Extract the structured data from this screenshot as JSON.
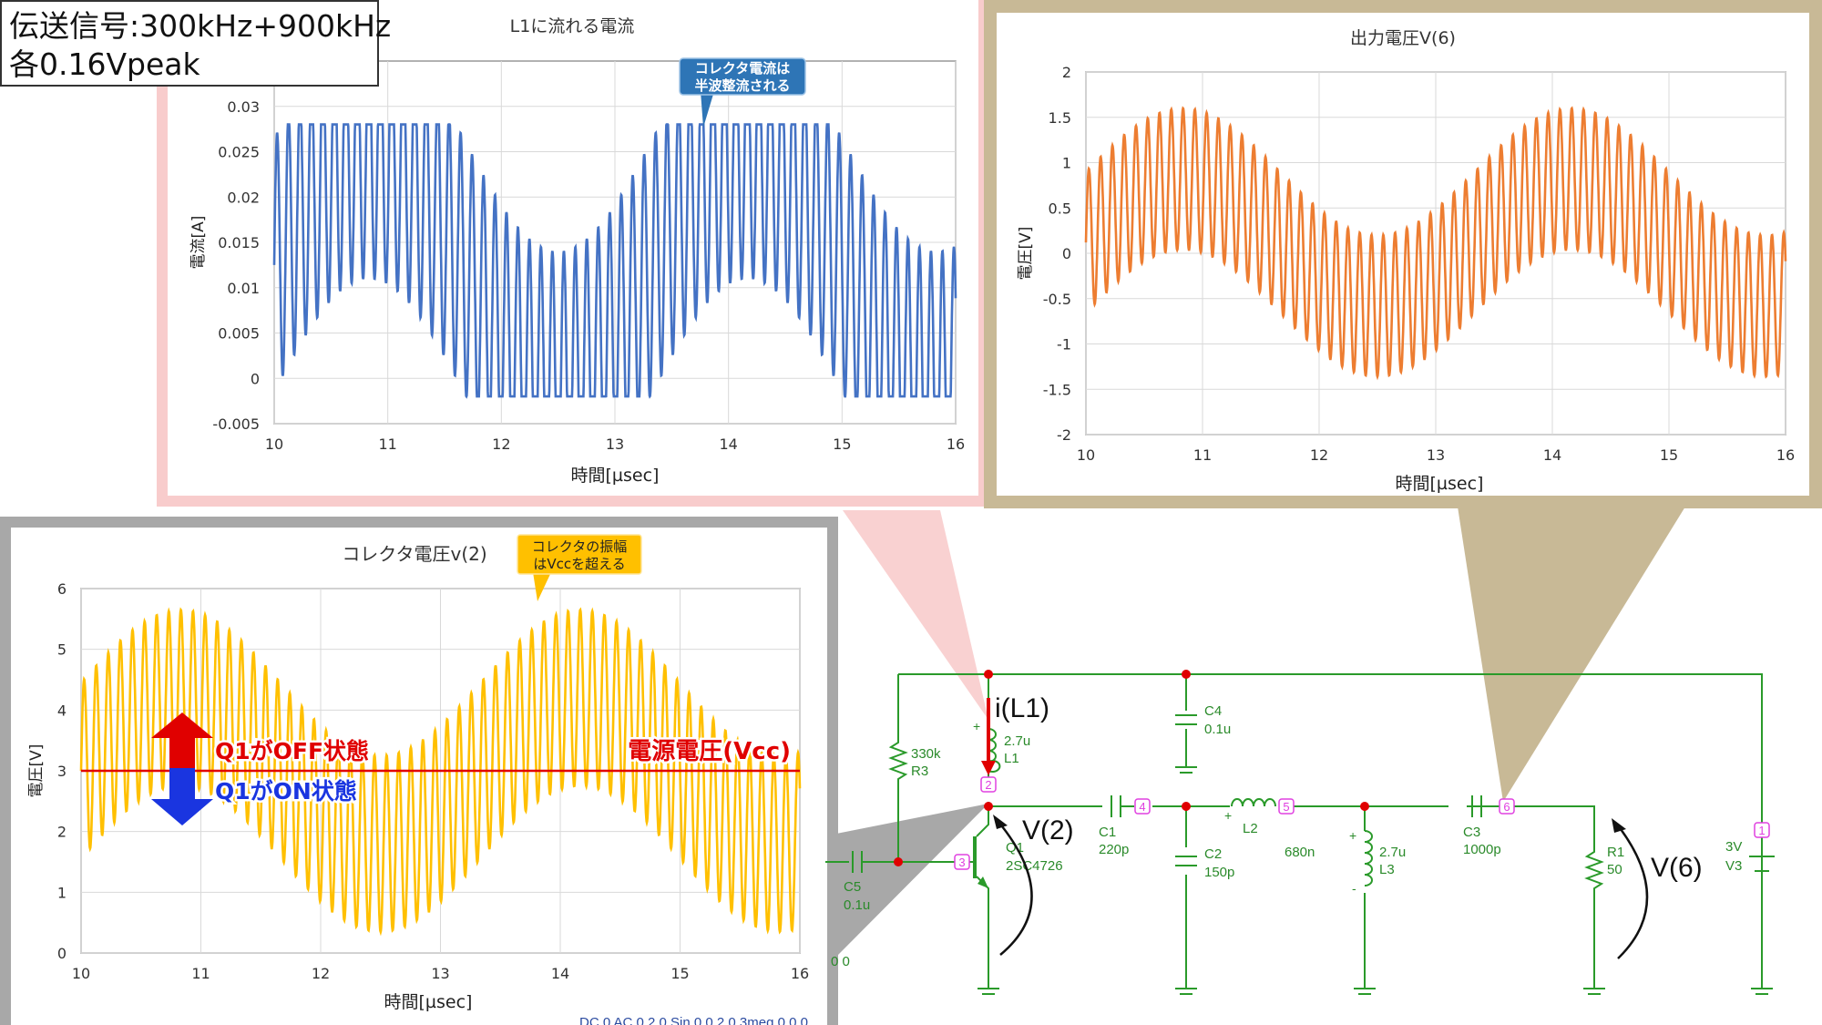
{
  "info_box": {
    "line1": "伝送信号:300kHz+900kHz",
    "line2": "各0.16Vpeak"
  },
  "colors": {
    "current_trace": "#4472c4",
    "output_trace": "#ed7d31",
    "collector_trace": "#ffc000",
    "vcc_line": "#e00000",
    "callout_blue": "#2e75b6",
    "callout_yellow": "#ffc000",
    "frame_pink": "#f8cccc",
    "frame_tan": "#c8b996",
    "frame_gray": "#a8a8a8",
    "wire": "#2a9a2a",
    "node": "#e00000",
    "label_green": "#2a8a2a",
    "node_tag": "#e040e0"
  },
  "chart_data": [
    {
      "id": "current",
      "type": "line",
      "title": "L1に流れる電流",
      "xlabel": "時間[µsec]",
      "ylabel": "電流[A]",
      "xlim": [
        10,
        16
      ],
      "ylim": [
        -0.005,
        0.035
      ],
      "x_ticks": [
        "10",
        "11",
        "12",
        "13",
        "14",
        "15",
        "16"
      ],
      "y_ticks": [
        "-0.005",
        "0",
        "0.005",
        "0.01",
        "0.015",
        "0.02",
        "0.025",
        "0.03"
      ],
      "grid": true,
      "annotation": [
        "コレクタ電流は",
        "半波整流される"
      ],
      "series": [
        {
          "freq_a_mhz": 0.3,
          "amp_a": 0.0125,
          "freq_b_mhz": 0.9,
          "amp_b": 0.014,
          "offset": 0.0125,
          "min": -0.002,
          "max": 0.028
        }
      ]
    },
    {
      "id": "output",
      "type": "line",
      "title": "出力電圧V(6)",
      "xlabel": "時間[µsec]",
      "ylabel": "電圧[V]",
      "xlim": [
        10,
        16
      ],
      "ylim": [
        -2,
        2
      ],
      "x_ticks": [
        "10",
        "11",
        "12",
        "13",
        "14",
        "15",
        "16"
      ],
      "y_ticks": [
        "-2",
        "-1.5",
        "-1",
        "-0.5",
        "0",
        "0.5",
        "1",
        "1.5",
        "2"
      ],
      "grid": true,
      "series": [
        {
          "freq_a_mhz": 0.3,
          "amp_a": 0.7,
          "freq_b_mhz": 0.9,
          "amp_b": 0.78,
          "offset": 0.12,
          "min": -1.4,
          "max": 1.6
        }
      ]
    },
    {
      "id": "collector",
      "type": "line",
      "title": "コレクタ電圧v(2)",
      "xlabel": "時間[µsec]",
      "ylabel": "電圧[V]",
      "xlim": [
        10,
        16
      ],
      "ylim": [
        0,
        6
      ],
      "x_ticks": [
        "10",
        "11",
        "12",
        "13",
        "14",
        "15",
        "16"
      ],
      "y_ticks": [
        "0",
        "1",
        "2",
        "3",
        "4",
        "5",
        "6"
      ],
      "grid": true,
      "annotation": [
        "コレクタの振幅",
        "はVccを超える"
      ],
      "reference_line": {
        "y": 3,
        "label": "電源電圧(Vcc)"
      },
      "arrow_labels": {
        "off": "Q1がOFF状態",
        "on": "Q1がON状態"
      },
      "series": [
        {
          "freq_a_mhz": 0.3,
          "amp_a": 1.2,
          "freq_b_mhz": 0.9,
          "amp_b": 1.45,
          "offset": 3.0,
          "min": 0.35,
          "max": 5.7
        }
      ]
    }
  ],
  "schematic": {
    "components": {
      "r3": [
        "330k",
        "R3"
      ],
      "l1": [
        "2.7u",
        "L1"
      ],
      "c4": [
        "C4",
        "0.1u"
      ],
      "c1": [
        "C1",
        "220p"
      ],
      "c2": [
        "C2",
        "150p"
      ],
      "l2": [
        "L2",
        "680n"
      ],
      "l3": [
        "2.7u",
        "L3"
      ],
      "c3": [
        "C3",
        "1000p"
      ],
      "r1": [
        "R1",
        "50"
      ],
      "v3": [
        "3V",
        "V3"
      ],
      "q1": [
        "Q1",
        "2SC4726"
      ],
      "c5": [
        "C5",
        "0.1u"
      ]
    },
    "node_tags": [
      "2",
      "3",
      "4",
      "5",
      "6",
      "1"
    ],
    "probe_labels": {
      "il1": "i(L1)",
      "v2": "V(2)",
      "v6": "V(6)"
    },
    "partial_texts": {
      "source": "DC 0 AC 0.2 0 Sin 0 0.2 0.3meg 0 0 0",
      "zeros": "0 0"
    }
  }
}
